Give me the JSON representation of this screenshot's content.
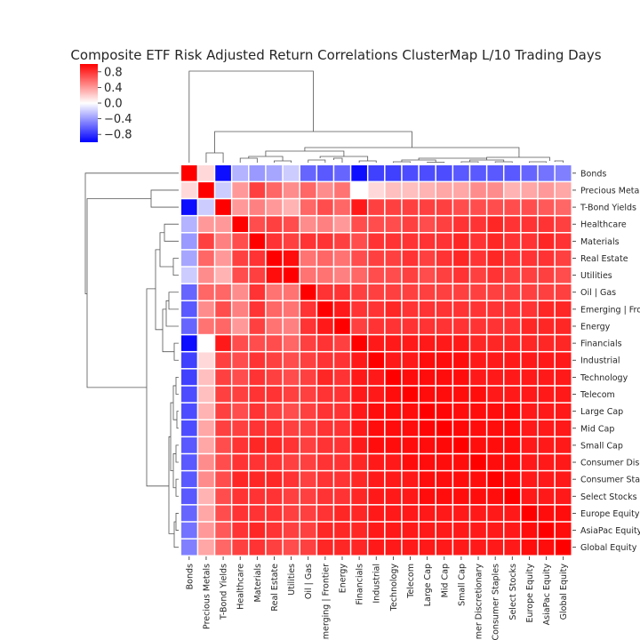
{
  "chart_data": {
    "type": "heatmap",
    "title": "Composite ETF Risk Adjusted Return Correlations ClusterMap L/10 Trading Days",
    "labels": [
      "Bonds",
      "Precious Metals",
      "T-Bond Yields",
      "Healthcare",
      "Materials",
      "Real Estate",
      "Utilities",
      "Oil | Gas",
      "Emerging | Frontier",
      "Energy",
      "Financials",
      "Industrial",
      "Technology",
      "Telecom",
      "Large Cap",
      "Mid Cap",
      "Small Cap",
      "Consumer Discretionary",
      "Consumer Staples",
      "Select Stocks",
      "Europe Equity",
      "AsiaPac Equity",
      "Global Equity"
    ],
    "colormap": "bwr",
    "vmin": -1,
    "vmax": 1,
    "colorbar_ticks": [
      {
        "value": 0.8,
        "label": "0.8"
      },
      {
        "value": 0.4,
        "label": "0.4"
      },
      {
        "value": 0.0,
        "label": "0.0"
      },
      {
        "value": -0.4,
        "label": "−0.4"
      },
      {
        "value": -0.8,
        "label": "−0.8"
      }
    ],
    "values": [
      [
        1.0,
        0.15,
        -0.95,
        -0.3,
        -0.4,
        -0.35,
        -0.2,
        -0.6,
        -0.65,
        -0.6,
        -0.95,
        -0.75,
        -0.75,
        -0.7,
        -0.7,
        -0.7,
        -0.65,
        -0.65,
        -0.65,
        -0.65,
        -0.6,
        -0.55,
        -0.5
      ],
      [
        0.15,
        1.0,
        -0.2,
        0.4,
        0.75,
        0.6,
        0.45,
        0.6,
        0.45,
        0.55,
        0.0,
        0.15,
        0.25,
        0.25,
        0.3,
        0.35,
        0.35,
        0.45,
        0.45,
        0.3,
        0.35,
        0.4,
        0.35
      ],
      [
        -0.95,
        -0.2,
        1.0,
        0.4,
        0.5,
        0.4,
        0.3,
        0.6,
        0.7,
        0.6,
        0.9,
        0.75,
        0.75,
        0.75,
        0.75,
        0.75,
        0.7,
        0.7,
        0.7,
        0.7,
        0.7,
        0.65,
        0.6
      ],
      [
        -0.3,
        0.4,
        0.4,
        1.0,
        0.7,
        0.75,
        0.7,
        0.45,
        0.5,
        0.4,
        0.7,
        0.7,
        0.7,
        0.75,
        0.7,
        0.75,
        0.8,
        0.8,
        0.85,
        0.8,
        0.8,
        0.8,
        0.75
      ],
      [
        -0.4,
        0.75,
        0.5,
        0.7,
        1.0,
        0.8,
        0.75,
        0.8,
        0.8,
        0.75,
        0.7,
        0.8,
        0.8,
        0.8,
        0.8,
        0.8,
        0.85,
        0.8,
        0.85,
        0.8,
        0.8,
        0.85,
        0.8
      ],
      [
        -0.35,
        0.6,
        0.4,
        0.75,
        0.8,
        1.0,
        0.95,
        0.55,
        0.6,
        0.55,
        0.7,
        0.75,
        0.75,
        0.8,
        0.75,
        0.8,
        0.85,
        0.8,
        0.85,
        0.8,
        0.8,
        0.8,
        0.75
      ],
      [
        -0.2,
        0.45,
        0.3,
        0.7,
        0.75,
        0.95,
        1.0,
        0.55,
        0.55,
        0.5,
        0.6,
        0.7,
        0.7,
        0.75,
        0.7,
        0.75,
        0.8,
        0.75,
        0.8,
        0.75,
        0.75,
        0.75,
        0.7
      ],
      [
        -0.6,
        0.6,
        0.6,
        0.45,
        0.8,
        0.55,
        0.55,
        1.0,
        0.8,
        0.8,
        0.75,
        0.75,
        0.75,
        0.75,
        0.75,
        0.75,
        0.75,
        0.75,
        0.75,
        0.75,
        0.75,
        0.75,
        0.75
      ],
      [
        -0.65,
        0.45,
        0.7,
        0.5,
        0.8,
        0.6,
        0.55,
        0.8,
        1.0,
        0.9,
        0.8,
        0.8,
        0.85,
        0.8,
        0.8,
        0.8,
        0.8,
        0.8,
        0.8,
        0.8,
        0.8,
        0.85,
        0.85
      ],
      [
        -0.6,
        0.55,
        0.6,
        0.4,
        0.75,
        0.55,
        0.5,
        0.8,
        0.9,
        1.0,
        0.75,
        0.8,
        0.8,
        0.8,
        0.8,
        0.8,
        0.8,
        0.8,
        0.8,
        0.8,
        0.85,
        0.85,
        0.85
      ],
      [
        -0.95,
        0.0,
        0.9,
        0.7,
        0.7,
        0.7,
        0.6,
        0.75,
        0.8,
        0.75,
        1.0,
        0.9,
        0.9,
        0.9,
        0.9,
        0.9,
        0.9,
        0.85,
        0.85,
        0.85,
        0.85,
        0.85,
        0.85
      ],
      [
        -0.75,
        0.15,
        0.75,
        0.7,
        0.8,
        0.75,
        0.7,
        0.75,
        0.8,
        0.8,
        0.9,
        1.0,
        0.9,
        0.9,
        0.95,
        0.95,
        0.95,
        0.9,
        0.9,
        0.9,
        0.9,
        0.9,
        0.9
      ],
      [
        -0.75,
        0.25,
        0.75,
        0.7,
        0.8,
        0.75,
        0.7,
        0.75,
        0.85,
        0.8,
        0.9,
        0.9,
        1.0,
        0.95,
        0.95,
        0.95,
        0.95,
        0.9,
        0.9,
        0.9,
        0.9,
        0.9,
        0.9
      ],
      [
        -0.7,
        0.25,
        0.75,
        0.75,
        0.8,
        0.8,
        0.75,
        0.75,
        0.8,
        0.8,
        0.9,
        0.9,
        0.95,
        1.0,
        0.95,
        0.95,
        0.95,
        0.95,
        0.9,
        0.9,
        0.9,
        0.9,
        0.9
      ],
      [
        -0.7,
        0.3,
        0.75,
        0.7,
        0.8,
        0.75,
        0.7,
        0.75,
        0.8,
        0.8,
        0.9,
        0.95,
        0.95,
        0.95,
        1.0,
        0.98,
        0.95,
        0.95,
        0.95,
        0.95,
        0.9,
        0.9,
        0.9
      ],
      [
        -0.7,
        0.35,
        0.75,
        0.75,
        0.8,
        0.8,
        0.75,
        0.75,
        0.8,
        0.8,
        0.9,
        0.95,
        0.95,
        0.95,
        0.98,
        1.0,
        0.97,
        0.95,
        0.95,
        0.95,
        0.9,
        0.9,
        0.9
      ],
      [
        -0.65,
        0.35,
        0.7,
        0.8,
        0.85,
        0.85,
        0.8,
        0.75,
        0.8,
        0.8,
        0.9,
        0.95,
        0.95,
        0.95,
        0.95,
        0.97,
        1.0,
        0.95,
        0.95,
        0.95,
        0.9,
        0.9,
        0.9
      ],
      [
        -0.65,
        0.45,
        0.7,
        0.8,
        0.8,
        0.8,
        0.75,
        0.75,
        0.8,
        0.8,
        0.85,
        0.9,
        0.9,
        0.95,
        0.95,
        0.95,
        0.95,
        1.0,
        0.95,
        0.95,
        0.9,
        0.9,
        0.9
      ],
      [
        -0.65,
        0.45,
        0.7,
        0.85,
        0.85,
        0.85,
        0.8,
        0.75,
        0.8,
        0.8,
        0.85,
        0.9,
        0.9,
        0.9,
        0.95,
        0.95,
        0.95,
        0.95,
        1.0,
        0.95,
        0.9,
        0.9,
        0.9
      ],
      [
        -0.65,
        0.3,
        0.7,
        0.8,
        0.8,
        0.8,
        0.75,
        0.75,
        0.8,
        0.8,
        0.85,
        0.9,
        0.9,
        0.9,
        0.95,
        0.95,
        0.95,
        0.95,
        0.95,
        1.0,
        0.9,
        0.9,
        0.9
      ],
      [
        -0.6,
        0.35,
        0.7,
        0.8,
        0.8,
        0.8,
        0.75,
        0.75,
        0.8,
        0.85,
        0.85,
        0.9,
        0.9,
        0.9,
        0.9,
        0.9,
        0.9,
        0.9,
        0.9,
        0.9,
        1.0,
        0.95,
        0.95
      ],
      [
        -0.55,
        0.4,
        0.65,
        0.8,
        0.85,
        0.8,
        0.75,
        0.75,
        0.85,
        0.85,
        0.85,
        0.9,
        0.9,
        0.9,
        0.9,
        0.9,
        0.9,
        0.9,
        0.9,
        0.9,
        0.95,
        1.0,
        0.95
      ],
      [
        -0.5,
        0.35,
        0.6,
        0.75,
        0.8,
        0.75,
        0.7,
        0.75,
        0.85,
        0.85,
        0.85,
        0.9,
        0.9,
        0.9,
        0.9,
        0.9,
        0.9,
        0.9,
        0.9,
        0.9,
        0.95,
        0.95,
        1.0
      ]
    ]
  }
}
